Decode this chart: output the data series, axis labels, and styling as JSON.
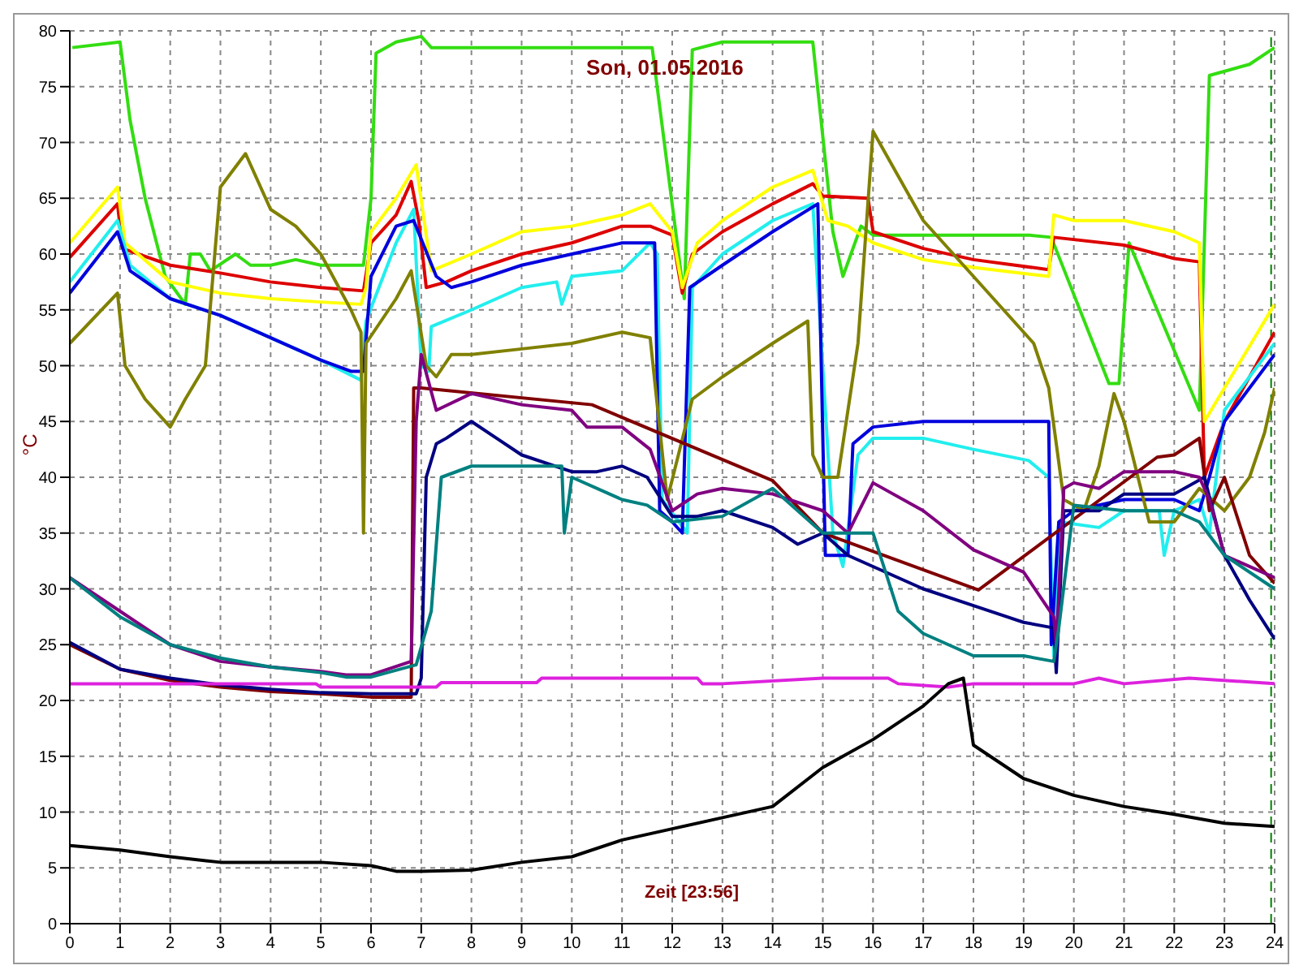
{
  "chart_data": {
    "type": "line",
    "title": "Son, 01.05.2016",
    "xlabel": "Zeit [23:56]",
    "ylabel": "°C",
    "xlim": [
      0,
      24
    ],
    "xticks": [
      0,
      1,
      2,
      3,
      4,
      5,
      6,
      7,
      8,
      9,
      10,
      11,
      12,
      13,
      14,
      15,
      16,
      17,
      18,
      19,
      20,
      21,
      22,
      23,
      24
    ],
    "ylim": [
      0,
      80
    ],
    "yticks": [
      0,
      5,
      10,
      15,
      20,
      25,
      30,
      35,
      40,
      45,
      50,
      55,
      60,
      65,
      70,
      75,
      80
    ],
    "grid": true,
    "legend": false,
    "marker": "none",
    "line_style": "solid",
    "ref_lines": [
      {
        "axis": "x",
        "value": 23.93,
        "color": "#008000",
        "line_style": "dashed"
      }
    ],
    "series": [
      {
        "color": "#33dd11",
        "x": [
          0.05,
          1.0,
          1.2,
          1.5,
          1.9,
          2.3,
          2.4,
          2.6,
          2.8,
          3.3,
          3.6,
          4.0,
          4.5,
          5.0,
          5.85,
          6.0,
          6.1,
          6.5,
          7.0,
          7.2,
          7.6,
          8.0,
          11.6,
          12.24,
          12.4,
          13.0,
          14.8,
          15.2,
          15.4,
          15.76,
          16.0,
          19.1,
          19.55,
          20.7,
          20.9,
          21.1,
          22.5,
          22.7,
          23.5,
          24.0
        ],
        "values": [
          78.5,
          79,
          72,
          65,
          58,
          55.5,
          60,
          60,
          58.5,
          60,
          59,
          59,
          59.5,
          59,
          59,
          65,
          78,
          79,
          79.5,
          78.5,
          78.5,
          78.5,
          78.5,
          56,
          78.3,
          79,
          79,
          62,
          58,
          62.5,
          61.7,
          61.7,
          61.5,
          48.4,
          48.4,
          61,
          46,
          76,
          77,
          78.5
        ]
      },
      {
        "color": "#dd0000",
        "x": [
          0,
          0.95,
          1.05,
          2,
          3,
          4,
          5,
          5.85,
          6.0,
          6.5,
          6.8,
          6.95,
          7.1,
          7.5,
          8,
          9,
          10,
          11,
          11.56,
          12.0,
          12.2,
          12.4,
          13,
          14,
          14.8,
          15.0,
          15.9,
          16.0,
          17,
          18,
          19.5,
          19.6,
          21,
          22,
          22.5,
          22.6,
          23,
          24
        ],
        "values": [
          59.7,
          64.5,
          60.5,
          59,
          58.3,
          57.5,
          57,
          56.7,
          61,
          63.5,
          66.5,
          63,
          57,
          57.5,
          58.5,
          60,
          61,
          62.5,
          62.5,
          61.7,
          56.5,
          60,
          62,
          64.5,
          66.3,
          65.2,
          65,
          62,
          60.5,
          59.5,
          58.6,
          61.5,
          60.8,
          59.6,
          59.3,
          40,
          45,
          53
        ]
      },
      {
        "color": "#ffff00",
        "x": [
          0,
          0.95,
          1.1,
          2,
          3,
          4,
          5,
          5.8,
          5.9,
          6.0,
          6.5,
          6.9,
          7.2,
          8,
          9,
          10,
          11,
          11.56,
          12.0,
          12.2,
          12.5,
          13,
          14,
          14.8,
          15.1,
          15.5,
          16,
          17,
          18,
          19.5,
          19.6,
          20,
          21,
          22,
          22.5,
          22.6,
          23,
          24
        ],
        "values": [
          61,
          66,
          61,
          57.5,
          56.5,
          56,
          55.7,
          55.5,
          57,
          62,
          65,
          68,
          58.5,
          60,
          62,
          62.5,
          63.5,
          64.5,
          62,
          57,
          61,
          63,
          66,
          67.5,
          63,
          62.5,
          61,
          59.5,
          58.8,
          58,
          63.5,
          63,
          63,
          62,
          61,
          45,
          48,
          55.5
        ]
      },
      {
        "color": "#22eeee",
        "x": [
          0,
          0.95,
          1.2,
          2,
          3,
          4,
          5,
          5.8,
          5.9,
          6.5,
          6.85,
          7.0,
          7.15,
          7.2,
          8,
          9,
          9.7,
          9.8,
          10,
          11,
          11.56,
          11.7,
          11.8,
          12.3,
          12.4,
          13,
          14,
          14.8,
          15.2,
          15.4,
          15.7,
          16,
          17,
          18,
          19.1,
          19.5,
          19.6,
          19.7,
          20.5,
          21,
          21.7,
          21.8,
          22,
          22.5,
          22.7,
          23,
          24
        ],
        "values": [
          57.5,
          63,
          59,
          56,
          54.5,
          52.5,
          50.5,
          48.7,
          54,
          61,
          64,
          50,
          49.5,
          53.5,
          55,
          57,
          57.5,
          55.5,
          58,
          58.5,
          61,
          60,
          38,
          35,
          57,
          60,
          63,
          64.5,
          35,
          32,
          42,
          43.5,
          43.5,
          42.5,
          41.5,
          40,
          24,
          36,
          35.5,
          37,
          37,
          33,
          37,
          38,
          35,
          46,
          52
        ]
      },
      {
        "color": "#0000dd",
        "x": [
          0,
          0.95,
          1.2,
          2,
          3,
          4,
          5,
          5.6,
          5.85,
          6.0,
          6.5,
          6.85,
          7.3,
          7.6,
          8,
          9,
          10,
          11,
          11.65,
          11.75,
          12,
          12.2,
          12.35,
          13,
          14,
          14.9,
          15.05,
          15.5,
          15.6,
          16,
          17,
          18,
          19.5,
          19.55,
          19.7,
          20,
          21,
          22,
          22.5,
          22.7,
          23,
          24
        ],
        "values": [
          56.5,
          62,
          58.5,
          56,
          54.5,
          52.5,
          50.5,
          49.5,
          49.5,
          58,
          62.5,
          63,
          58,
          57,
          57.5,
          59,
          60,
          61,
          61,
          37,
          36,
          35,
          57,
          59,
          62,
          64.5,
          33,
          33,
          43,
          44.5,
          45,
          45,
          45,
          25,
          36,
          37,
          38,
          38,
          37,
          40,
          45,
          51
        ]
      },
      {
        "color": "#808000",
        "x": [
          0,
          0.95,
          1.1,
          1.5,
          2.0,
          2.3,
          2.7,
          3.0,
          3.5,
          4.0,
          4.5,
          5.0,
          5.6,
          5.8,
          5.85,
          5.9,
          6.5,
          6.8,
          7.1,
          7.3,
          7.6,
          8,
          9,
          10,
          11,
          11.56,
          11.9,
          12.4,
          13,
          14,
          14.7,
          14.8,
          15,
          15.3,
          15.7,
          16,
          16.5,
          17,
          18,
          19.2,
          19.5,
          19.8,
          20.2,
          20.5,
          20.8,
          21,
          21.5,
          22,
          22.5,
          23,
          23.5,
          23.8,
          24
        ],
        "values": [
          52,
          56.5,
          50,
          47,
          44.5,
          47,
          50,
          66,
          69,
          64,
          62.5,
          60,
          55,
          53,
          35,
          52,
          56,
          58.5,
          50,
          49,
          51,
          51,
          51.5,
          52,
          53,
          52.5,
          38,
          47,
          49,
          52,
          54,
          42,
          40,
          40,
          52,
          71,
          67,
          63,
          58,
          52,
          48,
          38,
          37,
          41,
          47.5,
          45,
          36,
          36,
          39,
          37,
          40,
          44,
          48
        ]
      },
      {
        "color": "#800000",
        "x": [
          0,
          1,
          2,
          3,
          4,
          5,
          6,
          6.8,
          6.85,
          7,
          10.4,
          14,
          15,
          18.1,
          21.66,
          22,
          22.5,
          22.7,
          23,
          23.5,
          24
        ],
        "values": [
          25,
          22.8,
          21.8,
          21.2,
          20.8,
          20.6,
          20.3,
          20.3,
          48,
          48,
          46.5,
          39.7,
          35,
          29.9,
          41.8,
          42,
          43.5,
          37,
          40,
          33,
          30.5
        ]
      },
      {
        "color": "#000080",
        "x": [
          0,
          1,
          2,
          3,
          4,
          5,
          6,
          6.9,
          7.0,
          7.1,
          7.3,
          7.5,
          8,
          8.5,
          9,
          10,
          10.5,
          11,
          11.5,
          12,
          12.5,
          13,
          14,
          14.5,
          15,
          15.5,
          16,
          17,
          18,
          19,
          19.6,
          19.65,
          19.8,
          20.5,
          21,
          22,
          22.6,
          23,
          23.5,
          24
        ],
        "values": [
          25.2,
          22.8,
          22,
          21.4,
          21,
          20.7,
          20.6,
          20.6,
          22,
          40,
          43,
          43.5,
          45,
          43.5,
          42,
          40.5,
          40.5,
          41,
          40,
          36.5,
          36.5,
          37,
          35.5,
          34,
          35,
          33,
          32,
          30,
          28.5,
          27,
          26.5,
          22.5,
          37,
          37,
          38.5,
          38.5,
          40,
          33,
          29,
          25.5
        ]
      },
      {
        "color": "#800080",
        "x": [
          0,
          1,
          2,
          3,
          4,
          5,
          5.5,
          6,
          6.8,
          6.9,
          7.0,
          7.3,
          8,
          9,
          10,
          10.3,
          11,
          11.56,
          12,
          12.5,
          13,
          14,
          15,
          15.5,
          16,
          17,
          18,
          19,
          19.6,
          19.65,
          19.8,
          20,
          20.5,
          21,
          22,
          22.5,
          22.7,
          23,
          24
        ],
        "values": [
          31,
          28,
          25,
          23.5,
          23,
          22.6,
          22.3,
          22.3,
          23.5,
          45,
          51,
          46,
          47.5,
          46.5,
          46,
          44.5,
          44.5,
          42.5,
          37,
          38.5,
          39,
          38.5,
          37,
          35,
          39.5,
          37,
          33.5,
          31.5,
          27.5,
          25,
          39,
          39.5,
          39,
          40.5,
          40.5,
          40,
          38,
          33,
          31
        ]
      },
      {
        "color": "#008080",
        "x": [
          0,
          1,
          2,
          3,
          4,
          5,
          5.5,
          6,
          6.9,
          7.2,
          7.4,
          8,
          9,
          9.8,
          9.85,
          10,
          11,
          11.5,
          12,
          13,
          14,
          15,
          15.5,
          16,
          16.5,
          17,
          18,
          19,
          19.6,
          19.7,
          20,
          21,
          22,
          22.5,
          23,
          24
        ],
        "values": [
          31,
          27.5,
          25,
          23.8,
          23,
          22.5,
          22.1,
          22.1,
          23.2,
          28,
          40,
          41,
          41,
          41,
          35,
          40,
          38,
          37.5,
          36,
          36.5,
          39,
          35,
          35,
          35,
          28,
          26,
          24,
          24,
          23.5,
          26.5,
          37.5,
          37,
          37,
          36,
          33,
          30
        ]
      },
      {
        "color": "#dd22dd",
        "x": [
          0,
          4.9,
          5,
          6,
          7.3,
          7.4,
          9.3,
          9.4,
          12.5,
          12.6,
          13,
          15,
          16.3,
          16.5,
          17.5,
          18,
          20,
          20.5,
          21,
          22.3,
          24
        ],
        "values": [
          21.5,
          21.5,
          21.2,
          21.2,
          21.2,
          21.6,
          21.6,
          22,
          22,
          21.5,
          21.5,
          22,
          22,
          21.5,
          21.2,
          21.5,
          21.5,
          22,
          21.5,
          22,
          21.5
        ]
      },
      {
        "color": "#000000",
        "x": [
          0,
          1,
          2,
          3,
          4,
          5,
          6,
          6.5,
          7,
          8,
          9,
          10,
          11,
          12,
          13,
          14,
          15,
          16,
          17,
          17.5,
          17.8,
          18,
          19,
          20,
          21,
          22,
          23,
          24
        ],
        "values": [
          7,
          6.6,
          6,
          5.5,
          5.5,
          5.5,
          5.2,
          4.7,
          4.7,
          4.8,
          5.5,
          6,
          7.5,
          8.5,
          9.5,
          10.5,
          14,
          16.5,
          19.5,
          21.5,
          22,
          16,
          13,
          11.5,
          10.5,
          9.8,
          9,
          8.7
        ]
      }
    ]
  }
}
